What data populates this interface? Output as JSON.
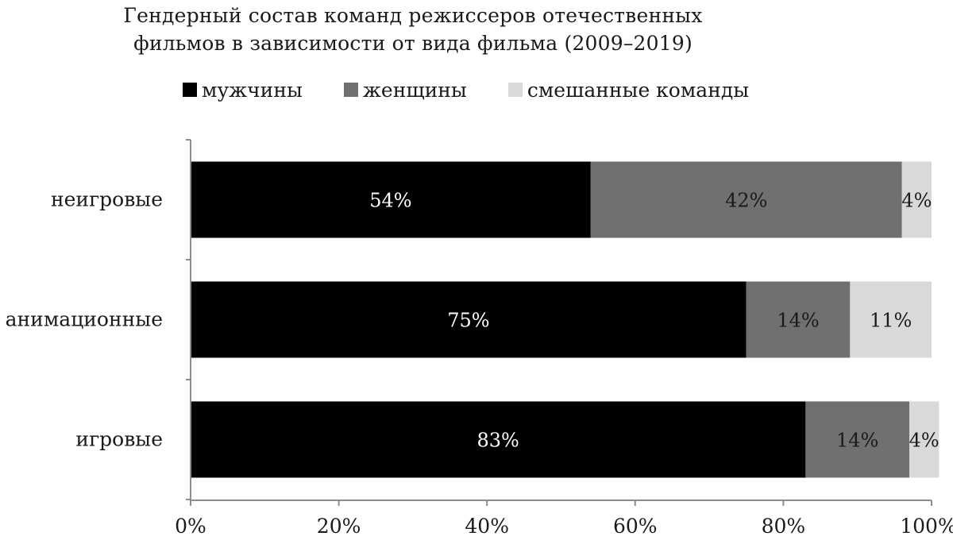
{
  "chart_data": {
    "type": "bar",
    "orientation": "horizontal",
    "stacked": true,
    "title_lines": [
      "Гендерный состав команд режиссеров отечественных",
      "фильмов в зависимости от вида фильма (2009–2019)"
    ],
    "categories": [
      "неигровые",
      "анимационные",
      "игровые"
    ],
    "series": [
      {
        "name": "мужчины",
        "color": "#000000",
        "label_color": "#ffffff",
        "values": [
          54,
          75,
          83
        ],
        "labels": [
          "54%",
          "75%",
          "83%"
        ]
      },
      {
        "name": "женщины",
        "color": "#707070",
        "label_color": "#1a1a1a",
        "values": [
          42,
          14,
          14
        ],
        "labels": [
          "42%",
          "14%",
          "14%"
        ]
      },
      {
        "name": "смешанные команды",
        "color": "#d9d9d9",
        "label_color": "#1a1a1a",
        "values": [
          4,
          11,
          4
        ],
        "labels": [
          "4%",
          "11%",
          "4%"
        ]
      }
    ],
    "xlim": [
      0,
      100
    ],
    "xticks": [
      0,
      20,
      40,
      60,
      80,
      100
    ],
    "xtick_labels": [
      "0%",
      "20%",
      "40%",
      "60%",
      "80%",
      "100%"
    ],
    "grid": false,
    "legend_position": "top"
  }
}
